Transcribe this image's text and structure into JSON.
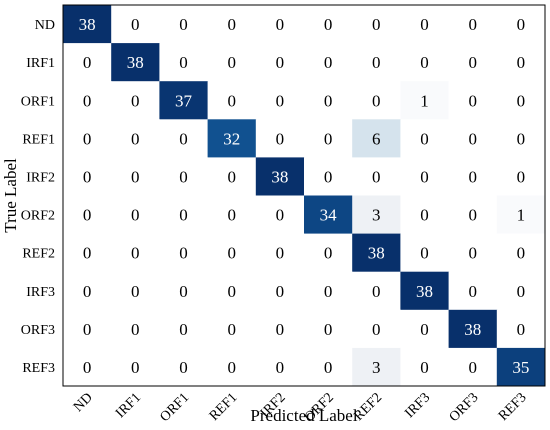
{
  "chart_data": {
    "type": "heatmap",
    "xlabel": "Predicted Label",
    "ylabel": "True Label",
    "row_labels": [
      "ND",
      "IRF1",
      "ORF1",
      "REF1",
      "IRF2",
      "ORF2",
      "REF2",
      "IRF3",
      "ORF3",
      "REF3"
    ],
    "col_labels": [
      "ND",
      "IRF1",
      "ORF1",
      "REF1",
      "IRF2",
      "ORF2",
      "REF2",
      "IRF3",
      "ORF3",
      "REF3"
    ],
    "values": [
      [
        38,
        0,
        0,
        0,
        0,
        0,
        0,
        0,
        0,
        0
      ],
      [
        0,
        38,
        0,
        0,
        0,
        0,
        0,
        0,
        0,
        0
      ],
      [
        0,
        0,
        37,
        0,
        0,
        0,
        0,
        1,
        0,
        0
      ],
      [
        0,
        0,
        0,
        32,
        0,
        0,
        6,
        0,
        0,
        0
      ],
      [
        0,
        0,
        0,
        0,
        38,
        0,
        0,
        0,
        0,
        0
      ],
      [
        0,
        0,
        0,
        0,
        0,
        34,
        3,
        0,
        0,
        1
      ],
      [
        0,
        0,
        0,
        0,
        0,
        0,
        38,
        0,
        0,
        0
      ],
      [
        0,
        0,
        0,
        0,
        0,
        0,
        0,
        38,
        0,
        0
      ],
      [
        0,
        0,
        0,
        0,
        0,
        0,
        0,
        0,
        38,
        0
      ],
      [
        0,
        0,
        0,
        0,
        0,
        0,
        3,
        0,
        0,
        35
      ]
    ],
    "value_range": [
      0,
      38
    ],
    "colormap": [
      "#ffffff",
      "#08306b"
    ]
  }
}
